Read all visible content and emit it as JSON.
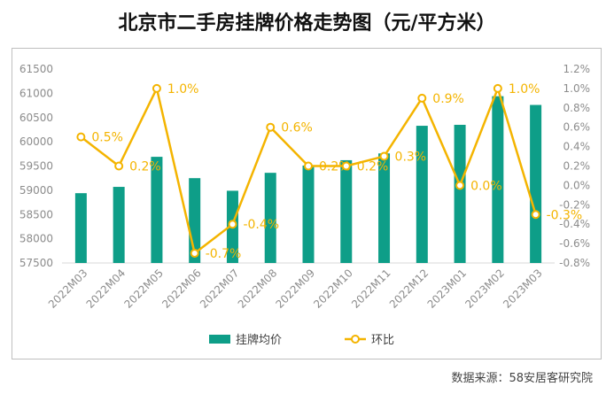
{
  "title": "北京市二手房挂牌价格走势图（元/平方米）",
  "source": "数据来源：58安居客研究院",
  "colors": {
    "bar": "#0e9e88",
    "line": "#f4b400",
    "label": "#f4b400",
    "axis_text": "#8c8c8c",
    "grid": "#d9d9d9"
  },
  "chart_data": {
    "type": "bar+line",
    "title": "北京市二手房挂牌价格走势图（元/平方米）",
    "categories": [
      "2022M03",
      "2022M04",
      "2022M05",
      "2022M06",
      "2022M07",
      "2022M08",
      "2022M09",
      "2022M10",
      "2022M11",
      "2022M12",
      "2023M01",
      "2023M02",
      "2023M03"
    ],
    "series": [
      {
        "name": "挂牌均价",
        "type": "bar",
        "axis": "left",
        "values": [
          58940,
          59070,
          59690,
          59250,
          58990,
          59360,
          59510,
          59620,
          59760,
          60330,
          60350,
          60940,
          60760
        ]
      },
      {
        "name": "环比",
        "type": "line",
        "axis": "right",
        "values": [
          0.5,
          0.2,
          1.0,
          -0.7,
          -0.4,
          0.6,
          0.2,
          0.2,
          0.3,
          0.9,
          0.0,
          1.0,
          -0.3
        ],
        "labels": [
          "0.5%",
          "0.2%",
          "1.0%",
          "-0.7%",
          "-0.4%",
          "0.6%",
          "0.2%",
          "0.2%",
          "0.3%",
          "0.9%",
          "0.0%",
          "1.0%",
          "-0.3%"
        ]
      }
    ],
    "y_left": {
      "min": 57500,
      "max": 61500,
      "step": 500,
      "ticks": [
        "57500",
        "58000",
        "58500",
        "59000",
        "59500",
        "60000",
        "60500",
        "61000",
        "61500"
      ]
    },
    "y_right": {
      "min": -0.8,
      "max": 1.2,
      "step": 0.2,
      "ticks": [
        "-0.8%",
        "-0.6%",
        "-0.4%",
        "-0.2%",
        "0.0%",
        "0.2%",
        "0.4%",
        "0.6%",
        "0.8%",
        "1.0%",
        "1.2%"
      ]
    },
    "grid": false,
    "legend": {
      "position": "bottom",
      "items": [
        "挂牌均价",
        "环比"
      ]
    }
  }
}
